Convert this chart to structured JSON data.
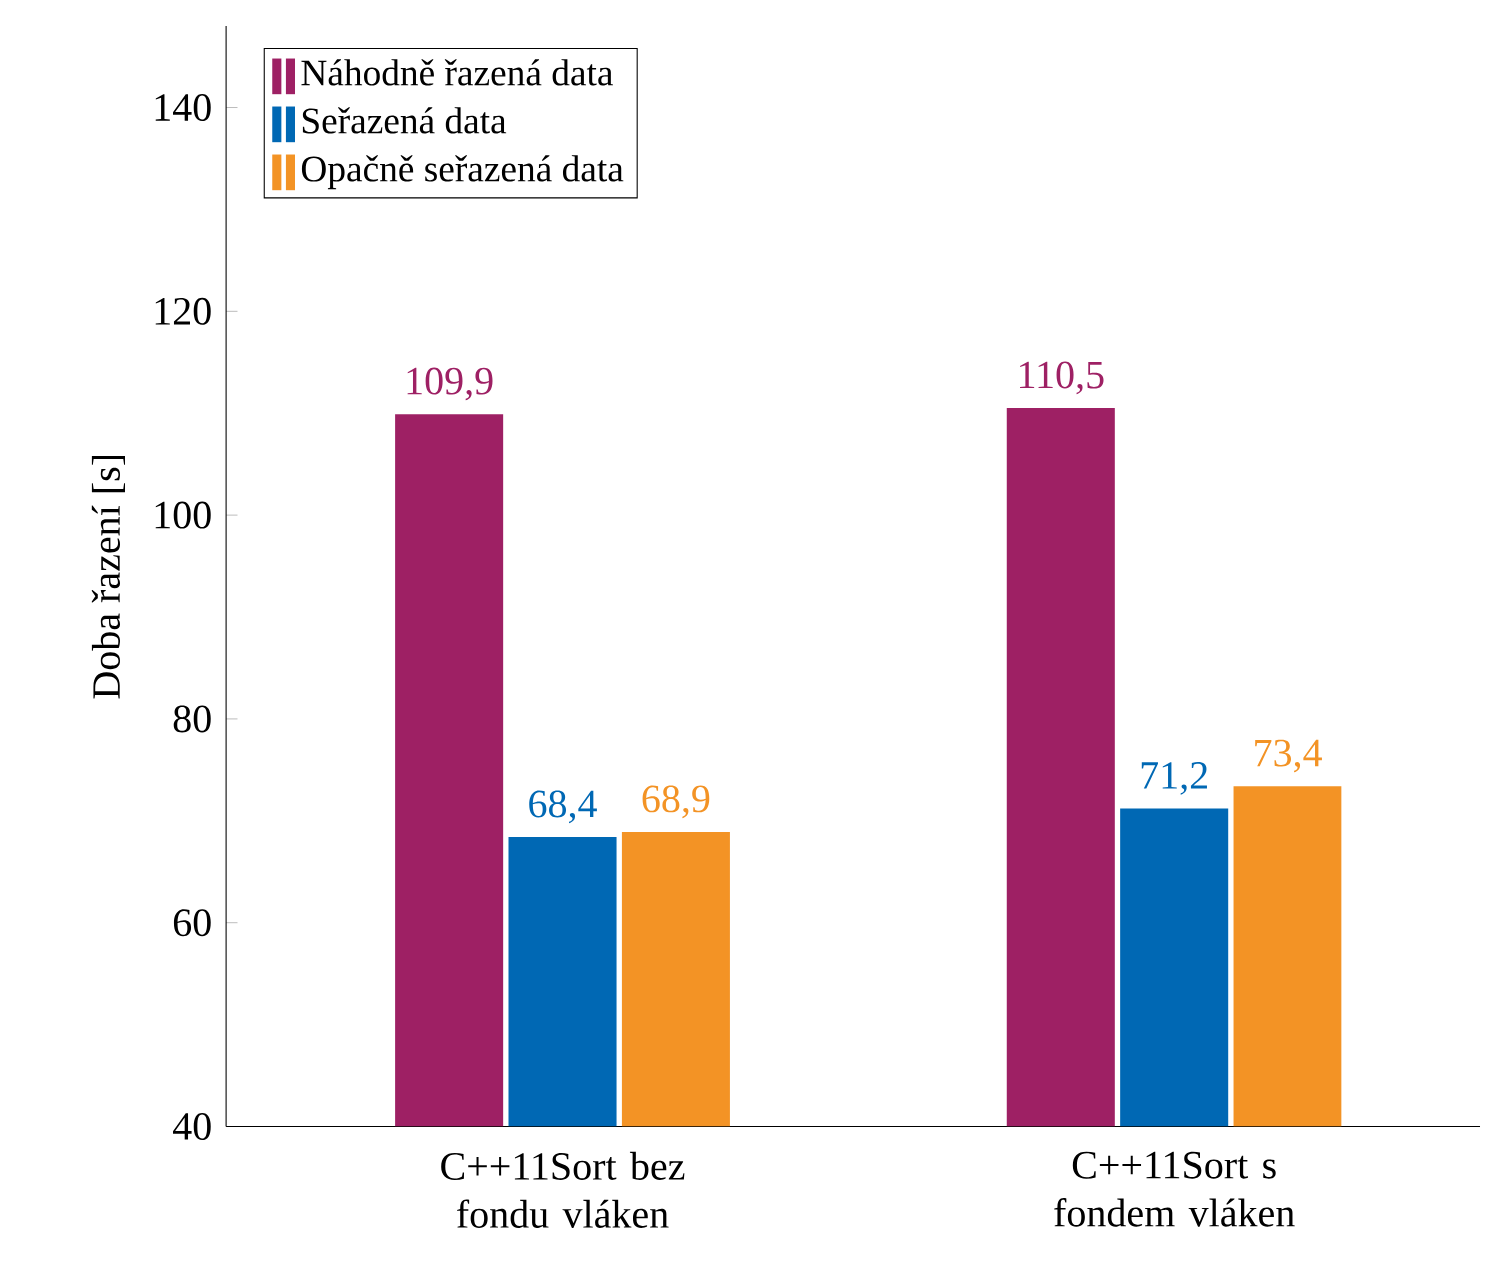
{
  "chart_data": {
    "type": "bar",
    "ylabel": "Doba řazení [s]",
    "categories": [
      "C++11Sort bez fondu vláken",
      "C++11Sort s fondem vláken"
    ],
    "series": [
      {
        "name": "Náhodně řazená data",
        "color": "#9e2064",
        "values": [
          109.9,
          110.5
        ],
        "value_labels": [
          "109,9",
          "110,5"
        ]
      },
      {
        "name": "Seřazená data",
        "color": "#0068b4",
        "values": [
          68.4,
          71.2
        ],
        "value_labels": [
          "68,4",
          "71,2"
        ]
      },
      {
        "name": "Opačně seřazená data",
        "color": "#f39325",
        "values": [
          68.9,
          73.4
        ],
        "value_labels": [
          "68,9",
          "73,4"
        ]
      }
    ],
    "ylim": [
      40,
      148
    ],
    "yticks": [
      40,
      60,
      80,
      100,
      120,
      140
    ],
    "grid": false,
    "legend": "top left"
  }
}
